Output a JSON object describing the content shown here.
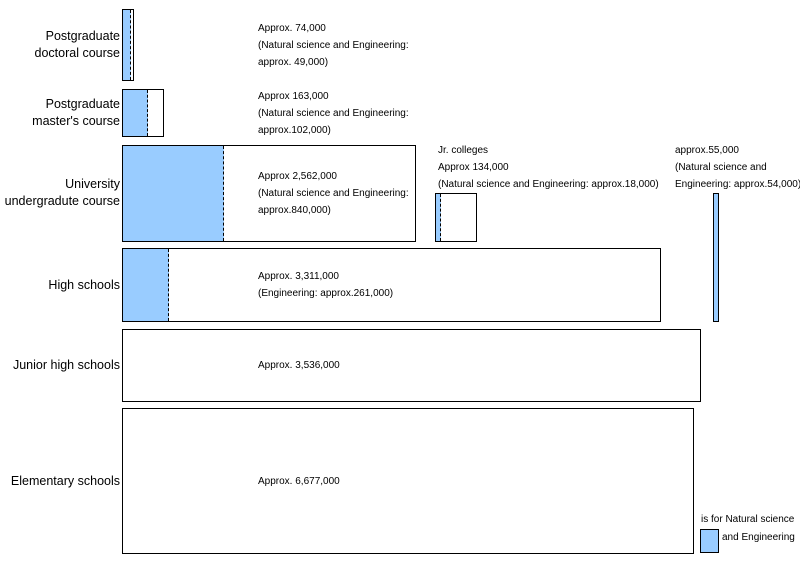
{
  "levels": {
    "doctoral": {
      "label_line1": "Postgraduate",
      "label_line2": "doctoral course",
      "note1": "Approx. 74,000",
      "note2": "(Natural science and Engineering:",
      "note3": "approx. 49,000)",
      "total": 74000,
      "science_share": 0.662
    },
    "masters": {
      "label_line1": "Postgraduate",
      "label_line2": "master's course",
      "note1": "Approx 163,000",
      "note2": "(Natural science and Engineering:",
      "note3": "approx.102,000)",
      "total": 163000,
      "science_share": 0.626
    },
    "university": {
      "label_line1": "University",
      "label_line2": "undergradute course",
      "note1": "Approx 2,562,000",
      "note2": "(Natural science and Engineering:",
      "note3": "approx.840,000)",
      "total": 2562000,
      "science_share": 0.328
    },
    "high_schools": {
      "label": "High schools",
      "note1": "Approx. 3,311,000",
      "note2": "(Engineering: approx.261,000)",
      "total": 3311000,
      "science_share": 0.079
    },
    "junior_high": {
      "label": "Junior high schools",
      "note1": "Approx. 3,536,000",
      "total": 3536000
    },
    "elementary": {
      "label": "Elementary schools",
      "note1": "Approx. 6,677,000",
      "total": 6677000
    }
  },
  "jr_colleges": {
    "note1": "Jr. colleges",
    "note2": "Approx 134,000",
    "note3": "(Natural science and Engineering: approx.18,000)",
    "total": 134000,
    "science_share": 0.134
  },
  "technical": {
    "note1": "approx.55,000",
    "note2": "(Natural science and",
    "note3": "Engineering: approx.54,000)",
    "total": 55000,
    "science_share": 0.98
  },
  "legend": {
    "line1": "is for Natural science",
    "line2": "and Engineering",
    "color": "#99ccff"
  }
}
